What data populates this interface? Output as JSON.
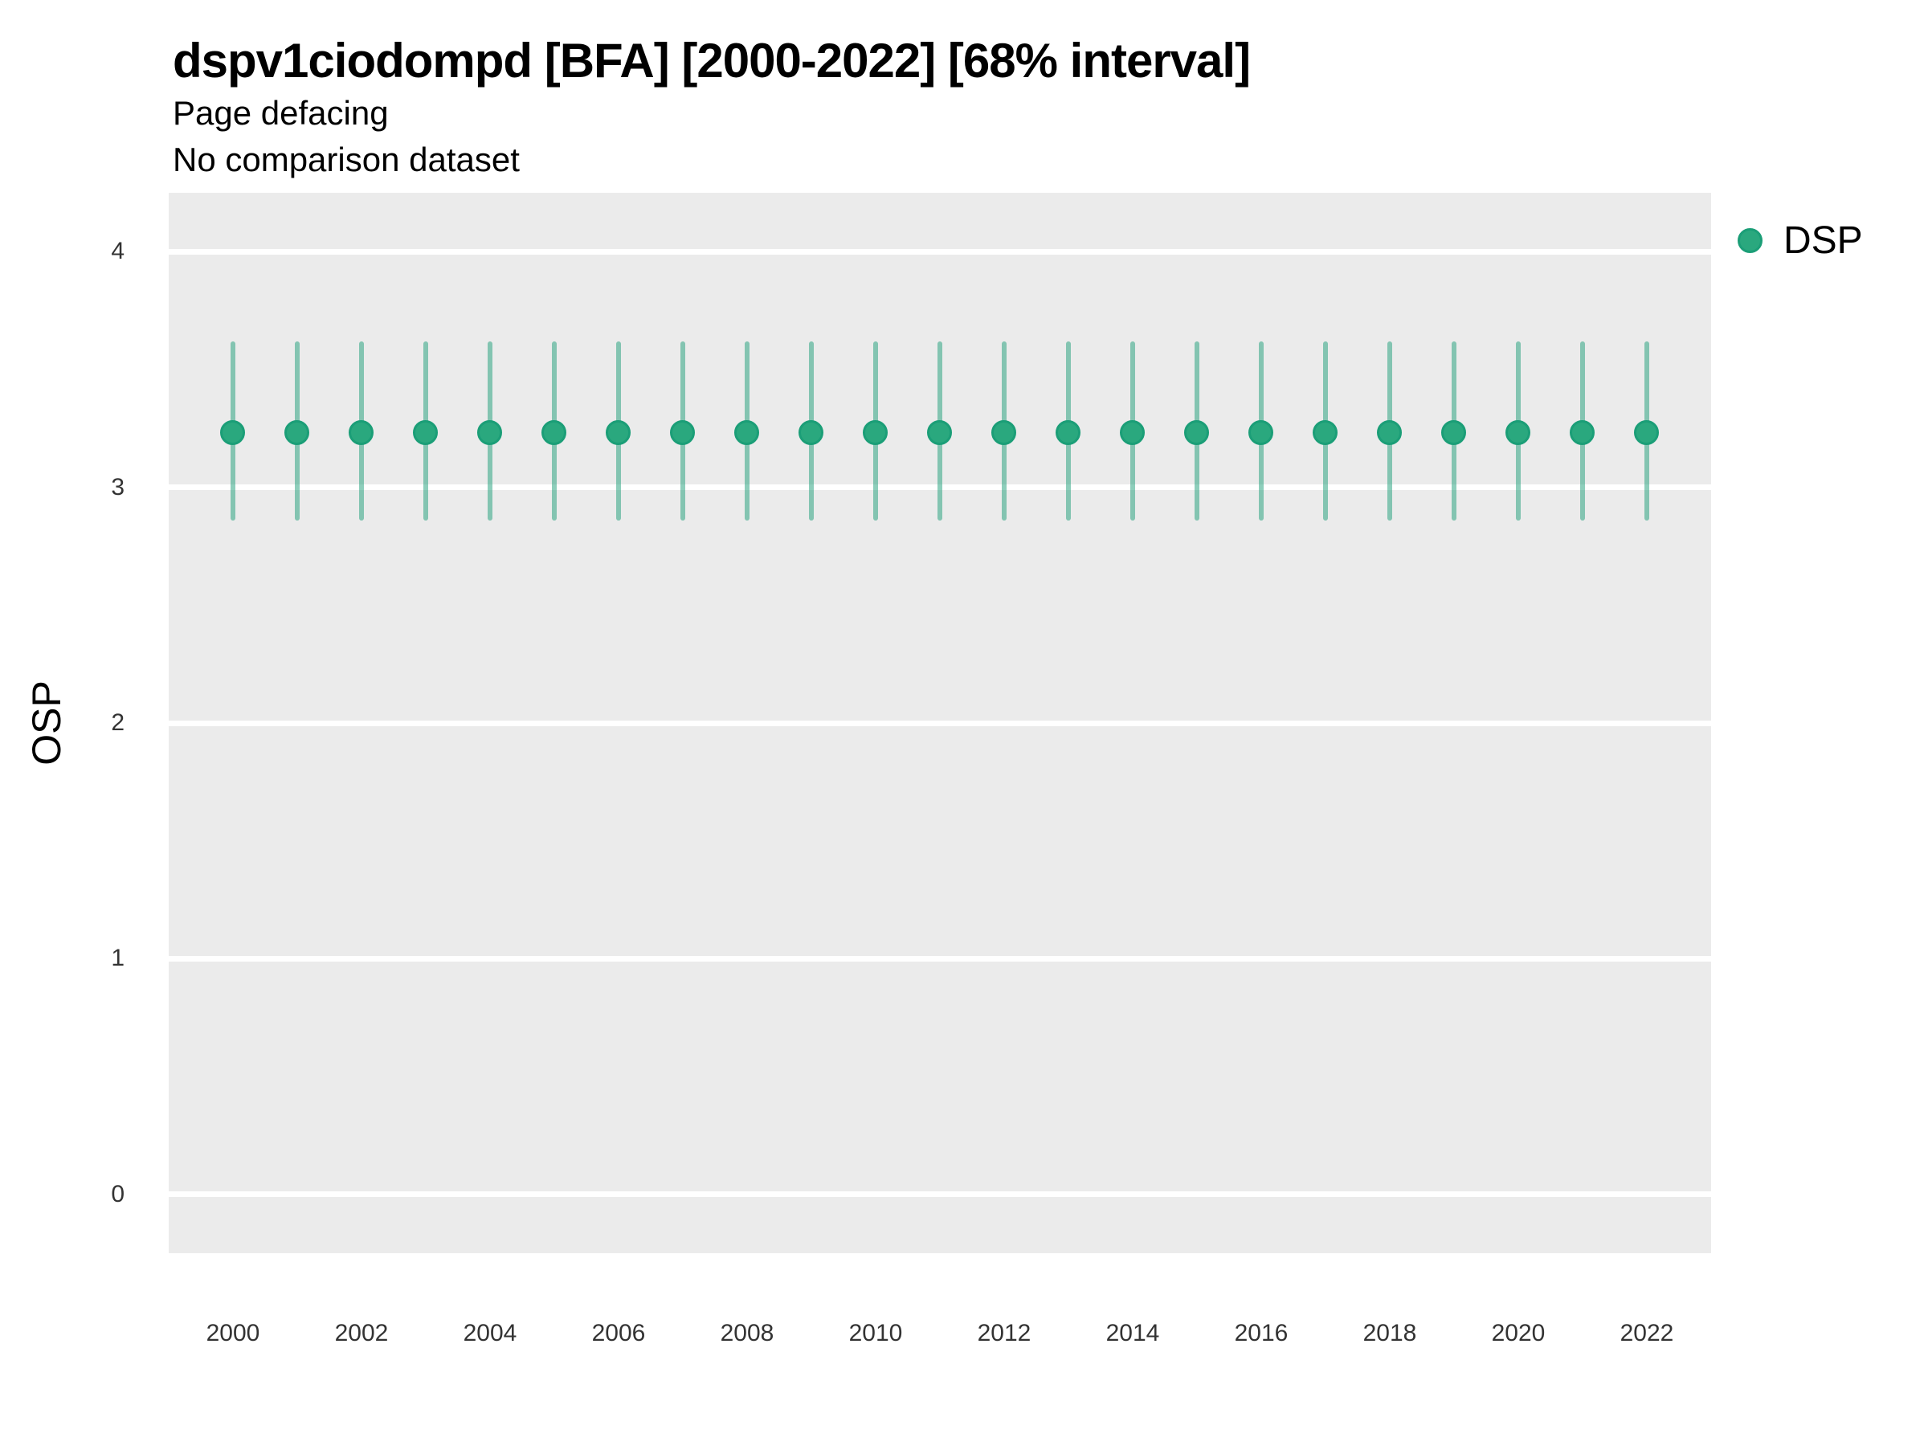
{
  "header": {
    "title": "dspv1ciodompd [BFA] [2000-2022] [68% interval]",
    "subtitle": "Page defacing",
    "subtitle2": "No comparison dataset"
  },
  "legend": {
    "label": "DSP",
    "position": "right-top"
  },
  "colors": {
    "point_fill": "#2aa87e",
    "point_stroke": "#1b9e77",
    "interval": "rgba(27,158,119,0.5)",
    "panel_background": "#ebebeb",
    "gridline": "#ffffff",
    "tick_text": "#333333"
  },
  "chart_data": {
    "type": "scatter",
    "subtype": "point-interval",
    "title": "dspv1ciodompd [BFA] [2000-2022] [68% interval]",
    "subtitle": "Page defacing",
    "annotation": "No comparison dataset",
    "xlabel": "",
    "ylabel": "OSP",
    "xlim": [
      1999,
      2023
    ],
    "ylim": [
      -0.25,
      4.25
    ],
    "x_ticks": [
      2000,
      2002,
      2004,
      2006,
      2008,
      2010,
      2012,
      2014,
      2016,
      2018,
      2020,
      2022
    ],
    "y_ticks": [
      0,
      1,
      2,
      3,
      4
    ],
    "grid": "horizontal-major-only",
    "legend_position": "right-top",
    "x": [
      2000,
      2001,
      2002,
      2003,
      2004,
      2005,
      2006,
      2007,
      2008,
      2009,
      2010,
      2011,
      2012,
      2013,
      2014,
      2015,
      2016,
      2017,
      2018,
      2019,
      2020,
      2021,
      2022
    ],
    "series": [
      {
        "name": "DSP",
        "values": [
          3.23,
          3.23,
          3.23,
          3.23,
          3.23,
          3.23,
          3.23,
          3.23,
          3.23,
          3.23,
          3.23,
          3.23,
          3.23,
          3.23,
          3.23,
          3.23,
          3.23,
          3.23,
          3.23,
          3.23,
          3.23,
          3.23,
          3.23
        ],
        "lower": [
          2.86,
          2.86,
          2.86,
          2.86,
          2.86,
          2.86,
          2.86,
          2.86,
          2.86,
          2.86,
          2.86,
          2.86,
          2.86,
          2.86,
          2.86,
          2.86,
          2.86,
          2.86,
          2.86,
          2.86,
          2.86,
          2.86,
          2.86
        ],
        "upper": [
          3.62,
          3.62,
          3.62,
          3.62,
          3.62,
          3.62,
          3.62,
          3.62,
          3.62,
          3.62,
          3.62,
          3.62,
          3.62,
          3.62,
          3.62,
          3.62,
          3.62,
          3.62,
          3.62,
          3.62,
          3.62,
          3.62,
          3.62
        ],
        "interval_label": "68% interval"
      }
    ]
  }
}
